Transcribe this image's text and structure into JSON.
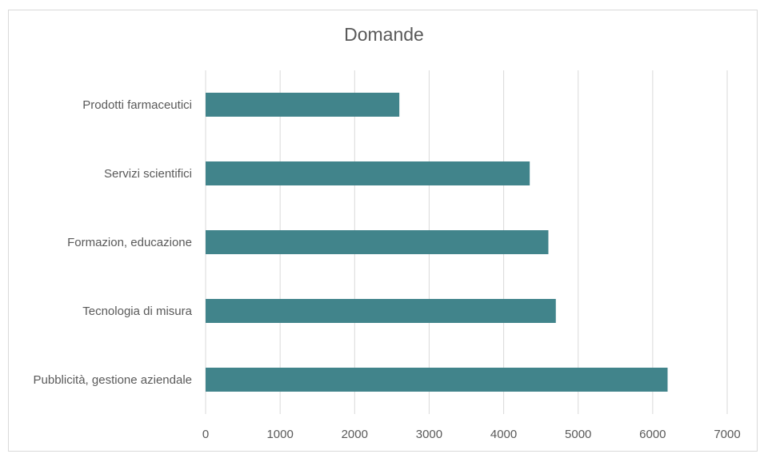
{
  "chart_data": {
    "type": "bar",
    "orientation": "horizontal",
    "title": "Domande",
    "categories": [
      "Prodotti farmaceutici",
      "Servizi scientifici",
      "Formazion, educazione",
      "Tecnologia di misura",
      "Pubblicità, gestione aziendale"
    ],
    "values": [
      2600,
      4350,
      4600,
      4700,
      6200
    ],
    "xlim": [
      0,
      7000
    ],
    "xticks": [
      "0",
      "1000",
      "2000",
      "3000",
      "4000",
      "5000",
      "6000",
      "7000"
    ],
    "grid": "vertical",
    "legend": "none",
    "bar_color": "#41848b",
    "grid_color": "#d9d9d9"
  }
}
